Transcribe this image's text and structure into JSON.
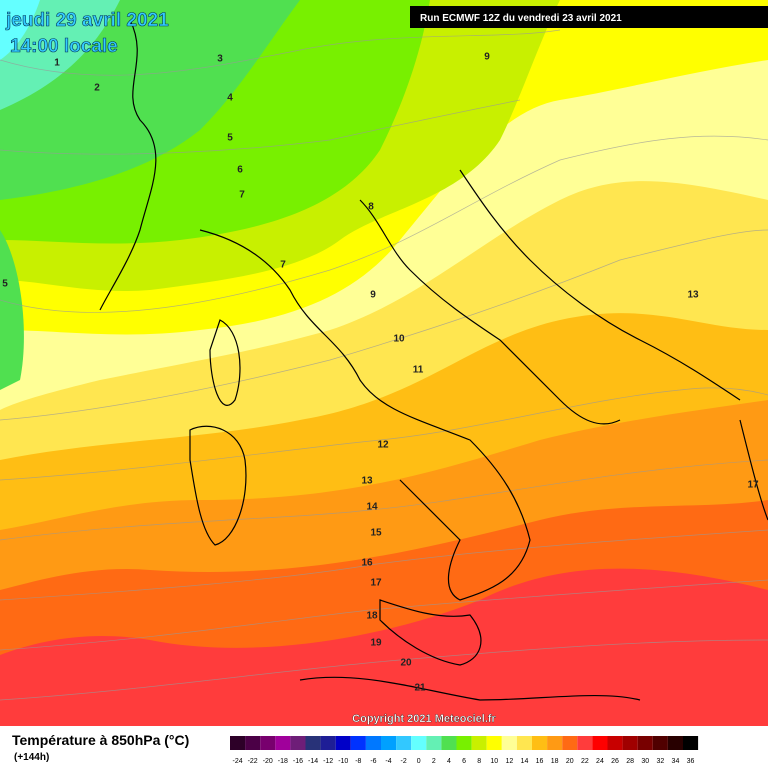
{
  "header": {
    "date_line": "jeudi 29 avril 2021",
    "time_line": "14:00 locale",
    "run_label": "Run ECMWF 12Z du vendredi 23 avril 2021"
  },
  "footer": {
    "copyright": "Copyright 2021 Meteociel.fr"
  },
  "legend": {
    "title": "Température à 850hPa (°C)",
    "subtitle": "(+144h)",
    "ticks": [
      -24,
      -22,
      -20,
      -18,
      -16,
      -14,
      -12,
      -10,
      -8,
      -6,
      -4,
      -2,
      0,
      2,
      4,
      6,
      8,
      10,
      12,
      14,
      16,
      18,
      20,
      22,
      24,
      26,
      28,
      30,
      32,
      34,
      36
    ],
    "colors": [
      "#2d0028",
      "#4b0046",
      "#78006e",
      "#a0009b",
      "#6e1e78",
      "#283278",
      "#1e1e96",
      "#0000c8",
      "#0032ff",
      "#0078ff",
      "#00a0ff",
      "#32c8ff",
      "#64ffff",
      "#64f0b4",
      "#50e050",
      "#78f000",
      "#c8f000",
      "#ffff00",
      "#ffff96",
      "#ffe650",
      "#ffbe14",
      "#ff9a14",
      "#ff6a14",
      "#ff3c3c",
      "#ff0000",
      "#c80000",
      "#a00000",
      "#780000",
      "#500000",
      "#280000",
      "#000000"
    ]
  },
  "contour_labels": [
    "1",
    "2",
    "3",
    "4",
    "5",
    "6",
    "7",
    "7",
    "8",
    "9",
    "9",
    "10",
    "11",
    "12",
    "13",
    "14",
    "15",
    "16",
    "17",
    "18",
    "19",
    "20",
    "21",
    "13",
    "17",
    "5"
  ]
}
